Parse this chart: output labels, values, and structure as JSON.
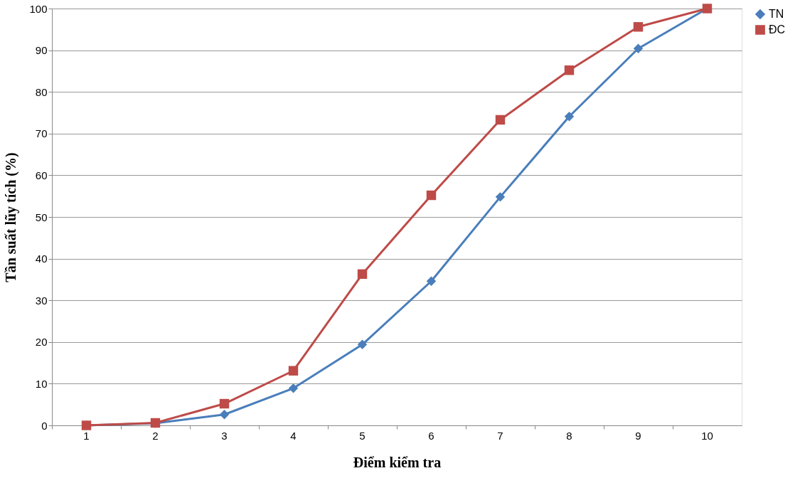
{
  "chart_data": {
    "type": "line",
    "xlabel": "Điểm kiểm tra",
    "ylabel": "Tần suất lũy tích (%)",
    "categories": [
      "1",
      "2",
      "3",
      "4",
      "5",
      "6",
      "7",
      "8",
      "9",
      "10"
    ],
    "ylim": [
      0,
      100
    ],
    "yticks": [
      0,
      10,
      20,
      30,
      40,
      50,
      60,
      70,
      80,
      90,
      100
    ],
    "grid": "y",
    "legend": "right",
    "line_style": "solid",
    "series": [
      {
        "name": "TN",
        "color": "#4a7ebb",
        "marker": "diamond",
        "values": [
          0,
          0.5,
          2.6,
          8.9,
          19.4,
          34.6,
          54.8,
          74.1,
          90.4,
          100
        ]
      },
      {
        "name": "ĐC",
        "color": "#be4b48",
        "marker": "square",
        "values": [
          0,
          0.6,
          5.2,
          13.1,
          36.3,
          55.2,
          73.3,
          85.2,
          95.6,
          100
        ]
      }
    ]
  }
}
